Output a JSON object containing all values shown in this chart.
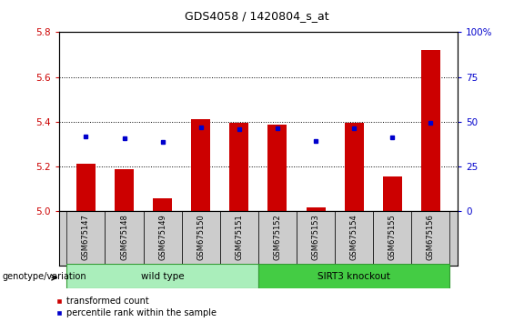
{
  "title": "GDS4058 / 1420804_s_at",
  "samples": [
    "GSM675147",
    "GSM675148",
    "GSM675149",
    "GSM675150",
    "GSM675151",
    "GSM675152",
    "GSM675153",
    "GSM675154",
    "GSM675155",
    "GSM675156"
  ],
  "red_values": [
    5.21,
    5.185,
    5.055,
    5.41,
    5.395,
    5.385,
    5.015,
    5.395,
    5.155,
    5.72
  ],
  "blue_values": [
    5.335,
    5.325,
    5.31,
    5.375,
    5.365,
    5.37,
    5.315,
    5.37,
    5.33,
    5.395
  ],
  "ylim_left": [
    5.0,
    5.8
  ],
  "ylim_right": [
    0,
    100
  ],
  "yticks_left": [
    5.0,
    5.2,
    5.4,
    5.6,
    5.8
  ],
  "yticks_right": [
    0,
    25,
    50,
    75,
    100
  ],
  "ytick_labels_right": [
    "0",
    "25",
    "50",
    "75",
    "100%"
  ],
  "bar_color": "#CC0000",
  "dot_color": "#0000CC",
  "base_value": 5.0,
  "bar_width": 0.5,
  "wt_color": "#AAEEBB",
  "sirt_color": "#44CC44",
  "legend_labels": [
    "transformed count",
    "percentile rank within the sample"
  ],
  "group_label": "genotype/variation"
}
